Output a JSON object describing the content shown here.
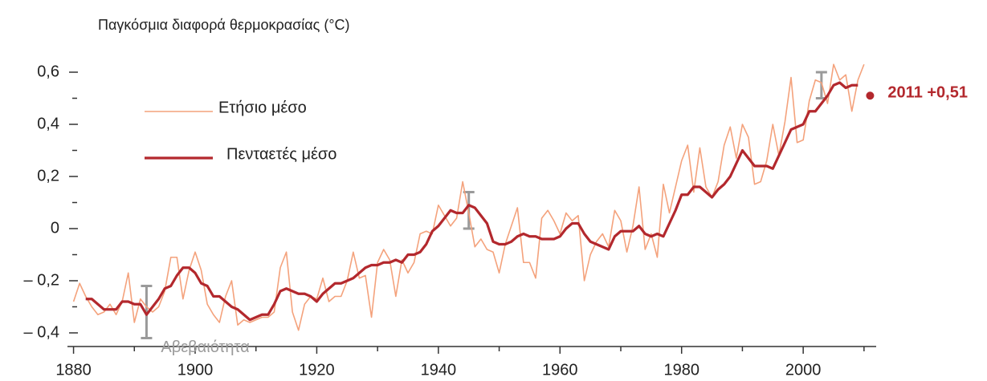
{
  "chart_data": {
    "type": "line",
    "title": "Παγκόσμια διαφορά θερμοκρασίας (°C)",
    "xlim": [
      1879,
      2012
    ],
    "xticks": [
      1880,
      1900,
      1920,
      1940,
      1960,
      1980,
      2000
    ],
    "xminor_ticks": [
      1890,
      1910,
      1930,
      1950,
      1970,
      1990,
      2010
    ],
    "ylim": [
      -0.45,
      0.65
    ],
    "yticks": [
      {
        "value": -0.4,
        "label": "– 0,4"
      },
      {
        "value": -0.2,
        "label": "– 0,2"
      },
      0,
      {
        "value": 0.2,
        "label": "0,2"
      },
      {
        "value": 0.4,
        "label": "0,4"
      },
      {
        "value": 0.6,
        "label": "0,6"
      }
    ],
    "yminor_ticks": [
      -0.3,
      -0.1,
      0.1,
      0.3,
      0.5
    ],
    "legend": "upper left",
    "series": [
      {
        "name": "Ετήσιο μέσο",
        "color": "#f4a27c",
        "width": 1.6,
        "x": [
          1880,
          1881,
          1882,
          1883,
          1884,
          1885,
          1886,
          1887,
          1888,
          1889,
          1890,
          1891,
          1892,
          1893,
          1894,
          1895,
          1896,
          1897,
          1898,
          1899,
          1900,
          1901,
          1902,
          1903,
          1904,
          1905,
          1906,
          1907,
          1908,
          1909,
          1910,
          1911,
          1912,
          1913,
          1914,
          1915,
          1916,
          1917,
          1918,
          1919,
          1920,
          1921,
          1922,
          1923,
          1924,
          1925,
          1926,
          1927,
          1928,
          1929,
          1930,
          1931,
          1932,
          1933,
          1934,
          1935,
          1936,
          1937,
          1938,
          1939,
          1940,
          1941,
          1942,
          1943,
          1944,
          1945,
          1946,
          1947,
          1948,
          1949,
          1950,
          1951,
          1952,
          1953,
          1954,
          1955,
          1956,
          1957,
          1958,
          1959,
          1960,
          1961,
          1962,
          1963,
          1964,
          1965,
          1966,
          1967,
          1968,
          1969,
          1970,
          1971,
          1972,
          1973,
          1974,
          1975,
          1976,
          1977,
          1978,
          1979,
          1980,
          1981,
          1982,
          1983,
          1984,
          1985,
          1986,
          1987,
          1988,
          1989,
          1990,
          1991,
          1992,
          1993,
          1994,
          1995,
          1996,
          1997,
          1998,
          1999,
          2000,
          2001,
          2002,
          2003,
          2004,
          2005,
          2006,
          2007,
          2008,
          2009,
          2010
        ],
        "values": [
          -0.28,
          -0.21,
          -0.26,
          -0.3,
          -0.33,
          -0.32,
          -0.29,
          -0.33,
          -0.28,
          -0.17,
          -0.36,
          -0.27,
          -0.3,
          -0.32,
          -0.3,
          -0.24,
          -0.11,
          -0.11,
          -0.27,
          -0.16,
          -0.09,
          -0.16,
          -0.29,
          -0.33,
          -0.36,
          -0.26,
          -0.2,
          -0.37,
          -0.35,
          -0.36,
          -0.35,
          -0.34,
          -0.34,
          -0.32,
          -0.15,
          -0.09,
          -0.32,
          -0.39,
          -0.29,
          -0.26,
          -0.27,
          -0.19,
          -0.28,
          -0.26,
          -0.26,
          -0.2,
          -0.09,
          -0.19,
          -0.18,
          -0.34,
          -0.13,
          -0.08,
          -0.12,
          -0.26,
          -0.12,
          -0.17,
          -0.13,
          -0.02,
          -0.01,
          -0.02,
          0.09,
          0.05,
          0.01,
          0.04,
          0.18,
          0.06,
          -0.07,
          -0.04,
          -0.08,
          -0.09,
          -0.17,
          -0.06,
          0.01,
          0.08,
          -0.13,
          -0.13,
          -0.19,
          0.04,
          0.07,
          0.03,
          -0.02,
          0.06,
          0.03,
          0.05,
          -0.2,
          -0.1,
          -0.05,
          -0.02,
          -0.07,
          0.07,
          0.03,
          -0.09,
          0.01,
          0.16,
          -0.08,
          -0.02,
          -0.11,
          0.17,
          0.06,
          0.16,
          0.26,
          0.32,
          0.14,
          0.31,
          0.16,
          0.12,
          0.18,
          0.32,
          0.39,
          0.27,
          0.4,
          0.35,
          0.17,
          0.18,
          0.26,
          0.4,
          0.28,
          0.41,
          0.58,
          0.33,
          0.34,
          0.49,
          0.57,
          0.56,
          0.48,
          0.63,
          0.57,
          0.59,
          0.45,
          0.57,
          0.63
        ]
      },
      {
        "name": "Πενταετές μέσο",
        "color": "#b3282d",
        "width": 3.2,
        "x": [
          1882,
          1883,
          1884,
          1885,
          1886,
          1887,
          1888,
          1889,
          1890,
          1891,
          1892,
          1893,
          1894,
          1895,
          1896,
          1897,
          1898,
          1899,
          1900,
          1901,
          1902,
          1903,
          1904,
          1905,
          1906,
          1907,
          1908,
          1909,
          1910,
          1911,
          1912,
          1913,
          1914,
          1915,
          1916,
          1917,
          1918,
          1919,
          1920,
          1921,
          1922,
          1923,
          1924,
          1925,
          1926,
          1927,
          1928,
          1929,
          1930,
          1931,
          1932,
          1933,
          1934,
          1935,
          1936,
          1937,
          1938,
          1939,
          1940,
          1941,
          1942,
          1943,
          1944,
          1945,
          1946,
          1947,
          1948,
          1949,
          1950,
          1951,
          1952,
          1953,
          1954,
          1955,
          1956,
          1957,
          1958,
          1959,
          1960,
          1961,
          1962,
          1963,
          1964,
          1965,
          1966,
          1967,
          1968,
          1969,
          1970,
          1971,
          1972,
          1973,
          1974,
          1975,
          1976,
          1977,
          1978,
          1979,
          1980,
          1981,
          1982,
          1983,
          1984,
          1985,
          1986,
          1987,
          1988,
          1989,
          1990,
          1991,
          1992,
          1993,
          1994,
          1995,
          1996,
          1997,
          1998,
          1999,
          2000,
          2001,
          2002,
          2003,
          2004,
          2005,
          2006,
          2007,
          2008,
          2009
        ],
        "values": [
          -0.27,
          -0.27,
          -0.29,
          -0.31,
          -0.31,
          -0.31,
          -0.28,
          -0.28,
          -0.29,
          -0.29,
          -0.33,
          -0.3,
          -0.27,
          -0.23,
          -0.22,
          -0.18,
          -0.15,
          -0.15,
          -0.17,
          -0.21,
          -0.22,
          -0.26,
          -0.26,
          -0.28,
          -0.3,
          -0.31,
          -0.33,
          -0.35,
          -0.34,
          -0.33,
          -0.33,
          -0.29,
          -0.24,
          -0.23,
          -0.24,
          -0.25,
          -0.25,
          -0.26,
          -0.28,
          -0.25,
          -0.23,
          -0.21,
          -0.21,
          -0.2,
          -0.19,
          -0.17,
          -0.15,
          -0.14,
          -0.14,
          -0.13,
          -0.13,
          -0.12,
          -0.13,
          -0.1,
          -0.1,
          -0.09,
          -0.06,
          -0.01,
          0.01,
          0.04,
          0.07,
          0.06,
          0.06,
          0.09,
          0.08,
          0.05,
          0.02,
          -0.05,
          -0.06,
          -0.06,
          -0.05,
          -0.03,
          -0.02,
          -0.03,
          -0.03,
          -0.04,
          -0.04,
          -0.04,
          -0.03,
          0.0,
          0.02,
          0.02,
          -0.02,
          -0.05,
          -0.06,
          -0.07,
          -0.08,
          -0.03,
          -0.01,
          -0.01,
          -0.01,
          0.01,
          -0.02,
          -0.03,
          -0.02,
          -0.03,
          0.02,
          0.07,
          0.13,
          0.13,
          0.16,
          0.16,
          0.14,
          0.12,
          0.15,
          0.17,
          0.2,
          0.25,
          0.3,
          0.27,
          0.24,
          0.24,
          0.24,
          0.23,
          0.28,
          0.33,
          0.38,
          0.39,
          0.4,
          0.45,
          0.45,
          0.48,
          0.51,
          0.55,
          0.56,
          0.54,
          0.55,
          0.55
        ]
      }
    ],
    "uncertainty_label": "Αβεβαιότητα",
    "uncertainty_color": "#9a9a9a",
    "uncertainty": [
      {
        "x": 1892,
        "low": -0.42,
        "high": -0.22
      },
      {
        "x": 1945,
        "low": 0.0,
        "high": 0.14
      },
      {
        "x": 2003,
        "low": 0.5,
        "high": 0.6
      }
    ],
    "highlight": {
      "x": 2011,
      "value": 0.51,
      "label": "2011 +0,51",
      "color": "#b3282d"
    }
  }
}
